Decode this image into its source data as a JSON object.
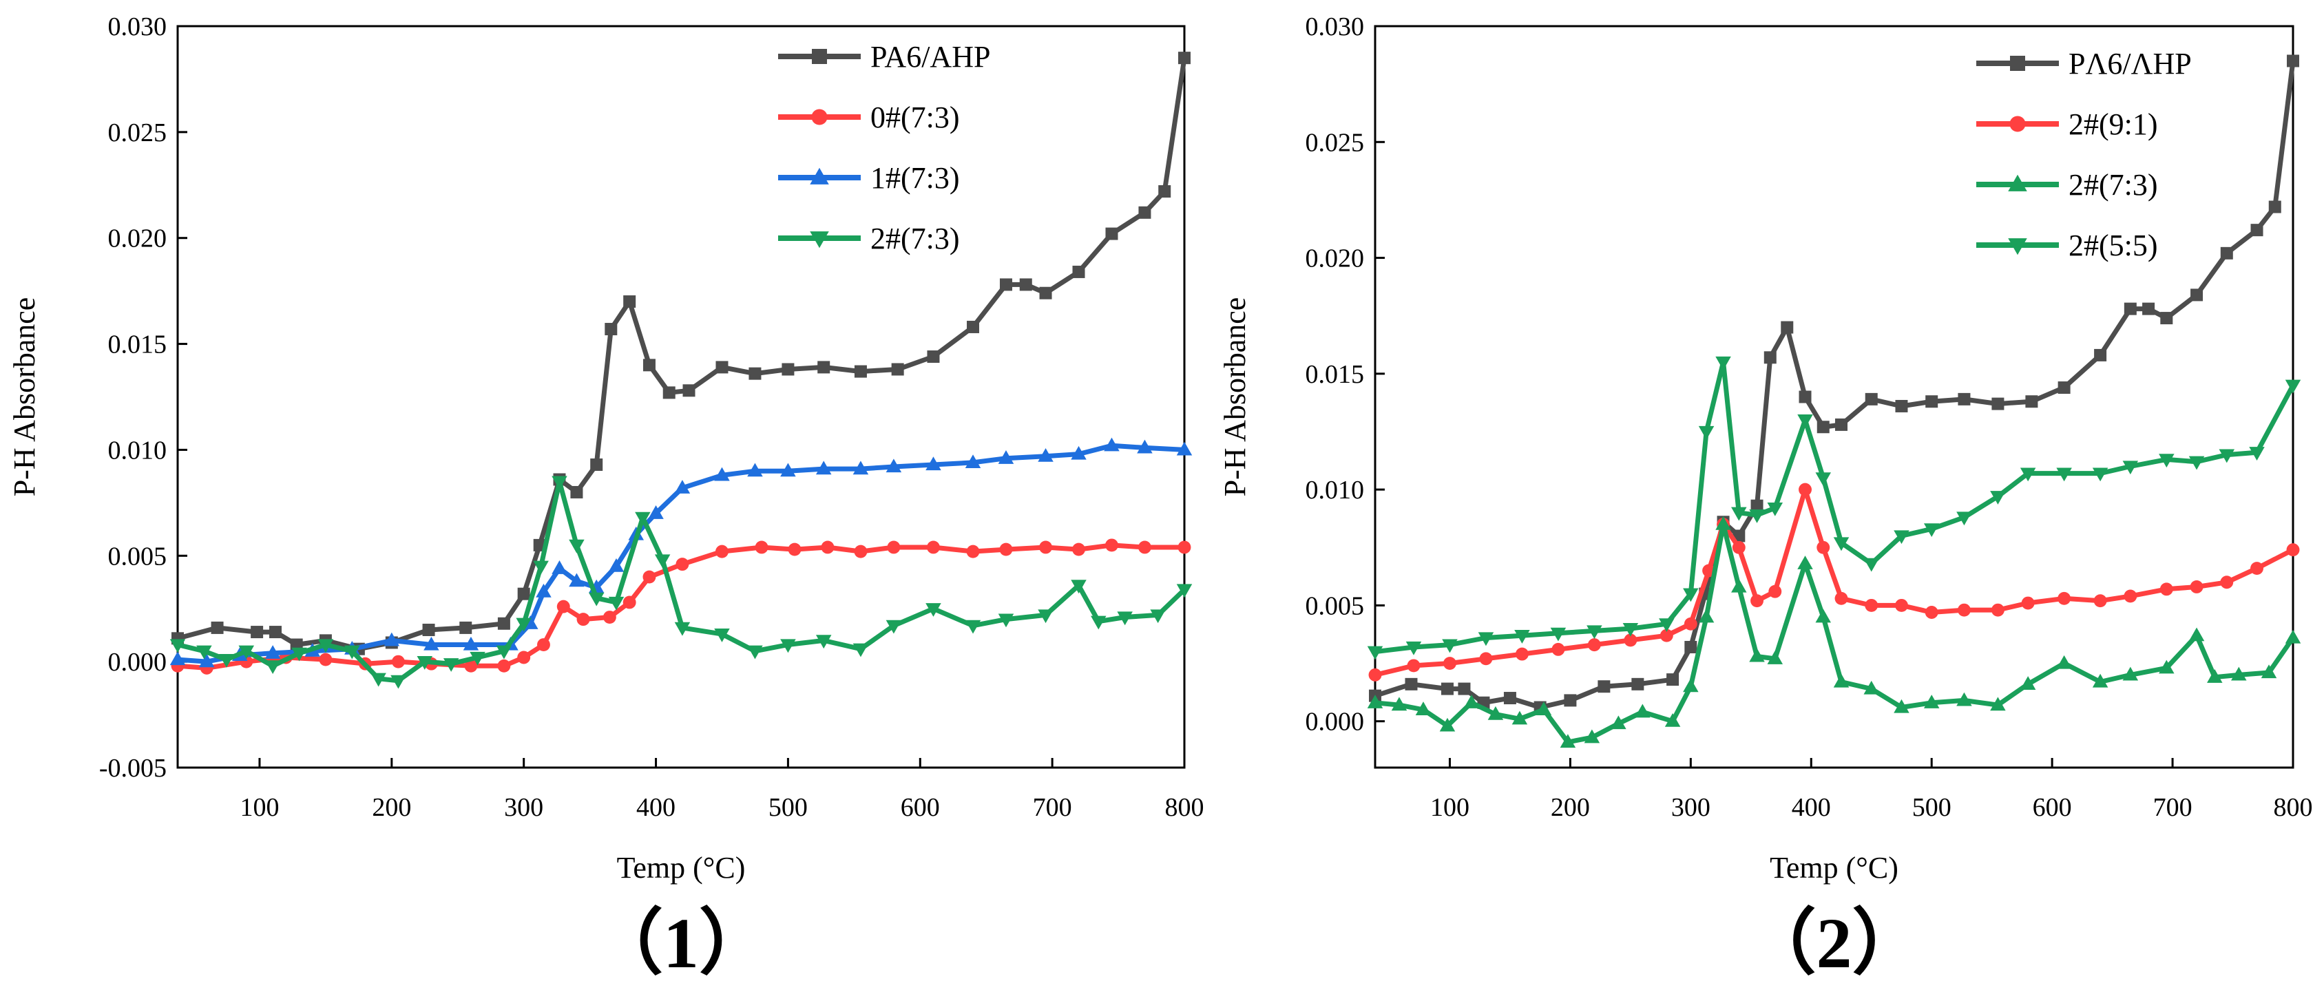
{
  "colors": {
    "PA6/AHP": "#4d4d4d",
    "PΛ6/ΛHP": "#4d4d4d",
    "0#(7:3)": "#ff4040",
    "1#(7:3)": "#1f6fde",
    "2#(7:3)": "#1aa05a",
    "2#(9:1)": "#ff4040",
    "2#(5:5)": "#1aa05a"
  },
  "chart_data": [
    {
      "type": "line",
      "panel_label": "（1）",
      "xlabel": "Temp (°C)",
      "ylabel": "P-H Absorbance",
      "xlim": [
        38,
        800
      ],
      "ylim": [
        -0.005,
        0.03
      ],
      "xticks": [
        100,
        200,
        300,
        400,
        500,
        600,
        700,
        800
      ],
      "yticks": [
        -0.005,
        0.0,
        0.005,
        0.01,
        0.015,
        0.02,
        0.025,
        0.03
      ],
      "ytick_labels": [
        "-0.005",
        "0.000",
        "0.005",
        "0.010",
        "0.015",
        "0.020",
        "0.025",
        "0.030"
      ],
      "legend_position": "top-right",
      "series": [
        {
          "name": "PA6/AHP",
          "marker": "square",
          "color_key": "PA6/AHP",
          "x": [
            38,
            68,
            98,
            112,
            128,
            150,
            175,
            200,
            228,
            256,
            285,
            300,
            312,
            327,
            340,
            355,
            366,
            380,
            395,
            410,
            425,
            450,
            475,
            500,
            527,
            555,
            583,
            610,
            640,
            665,
            680,
            695,
            720,
            745,
            770,
            785,
            800
          ],
          "y": [
            0.0011,
            0.0016,
            0.0014,
            0.0014,
            0.0008,
            0.001,
            0.0006,
            0.0009,
            0.0015,
            0.0016,
            0.0018,
            0.0032,
            0.0055,
            0.0086,
            0.008,
            0.0093,
            0.0157,
            0.017,
            0.014,
            0.0127,
            0.0128,
            0.0139,
            0.0136,
            0.0138,
            0.0139,
            0.0137,
            0.0138,
            0.0144,
            0.0158,
            0.0178,
            0.0178,
            0.0174,
            0.0184,
            0.0202,
            0.0212,
            0.0222,
            0.0285
          ]
        },
        {
          "name": "0#(7:3)",
          "marker": "circle",
          "color_key": "0#(7:3)",
          "x": [
            38,
            60,
            90,
            120,
            150,
            180,
            205,
            230,
            260,
            285,
            300,
            315,
            330,
            345,
            365,
            380,
            395,
            420,
            450,
            480,
            505,
            530,
            555,
            580,
            610,
            640,
            665,
            695,
            720,
            745,
            770,
            800
          ],
          "y": [
            -0.0002,
            -0.0003,
            0.0,
            0.0002,
            0.0001,
            -0.0001,
            0.0,
            -0.0001,
            -0.0002,
            -0.0002,
            0.0002,
            0.0008,
            0.0026,
            0.002,
            0.0021,
            0.0028,
            0.004,
            0.0046,
            0.0052,
            0.0054,
            0.0053,
            0.0054,
            0.0052,
            0.0054,
            0.0054,
            0.0052,
            0.0053,
            0.0054,
            0.0053,
            0.0055,
            0.0054,
            0.0054
          ]
        },
        {
          "name": "1#(7:3)",
          "marker": "triangle-up",
          "color_key": "1#(7:3)",
          "x": [
            38,
            60,
            85,
            110,
            140,
            170,
            200,
            230,
            260,
            290,
            305,
            315,
            327,
            340,
            355,
            370,
            385,
            400,
            420,
            450,
            475,
            500,
            527,
            555,
            580,
            610,
            640,
            665,
            695,
            720,
            745,
            770,
            800
          ],
          "y": [
            0.0001,
            0.0,
            0.0003,
            0.0004,
            0.0005,
            0.0006,
            0.001,
            0.0008,
            0.0008,
            0.0008,
            0.0018,
            0.0033,
            0.0044,
            0.0038,
            0.0035,
            0.0045,
            0.006,
            0.007,
            0.0082,
            0.0088,
            0.009,
            0.009,
            0.0091,
            0.0091,
            0.0092,
            0.0093,
            0.0094,
            0.0096,
            0.0097,
            0.0098,
            0.0102,
            0.0101,
            0.01
          ]
        },
        {
          "name": "2#(7:3)",
          "marker": "triangle-down",
          "color_key": "2#(7:3)",
          "x": [
            38,
            58,
            75,
            90,
            110,
            130,
            150,
            170,
            190,
            205,
            225,
            245,
            265,
            285,
            300,
            313,
            327,
            340,
            355,
            370,
            390,
            405,
            420,
            450,
            475,
            500,
            527,
            555,
            580,
            610,
            640,
            665,
            695,
            720,
            735,
            755,
            780,
            800
          ],
          "y": [
            0.0008,
            0.0005,
            0.0001,
            0.0005,
            -0.0002,
            0.0004,
            0.0008,
            0.0005,
            -0.0008,
            -0.0009,
            0.0,
            -0.0001,
            0.0002,
            0.0005,
            0.0018,
            0.0045,
            0.0085,
            0.0055,
            0.003,
            0.0028,
            0.0068,
            0.0048,
            0.0016,
            0.0013,
            0.0005,
            0.0008,
            0.001,
            0.0006,
            0.0017,
            0.0025,
            0.0017,
            0.002,
            0.0022,
            0.0036,
            0.0019,
            0.0021,
            0.0022,
            0.0034
          ]
        }
      ]
    },
    {
      "type": "line",
      "panel_label": "（2）",
      "xlabel": "Temp (°C)",
      "ylabel": "P-H Absorbance",
      "xlim": [
        38,
        800
      ],
      "ylim": [
        -0.002,
        0.03
      ],
      "xticks": [
        100,
        200,
        300,
        400,
        500,
        600,
        700,
        800
      ],
      "yticks": [
        0.0,
        0.005,
        0.01,
        0.015,
        0.02,
        0.025,
        0.03
      ],
      "ytick_labels": [
        "0.000",
        "0.005",
        "0.010",
        "0.015",
        "0.020",
        "0.025",
        "0.030"
      ],
      "legend_position": "top-right",
      "series": [
        {
          "name": "PΛ6/ΛHP",
          "marker": "square",
          "color_key": "PΛ6/ΛHP",
          "x": [
            38,
            68,
            98,
            112,
            128,
            150,
            175,
            200,
            228,
            256,
            285,
            300,
            312,
            327,
            340,
            355,
            366,
            380,
            395,
            410,
            425,
            450,
            475,
            500,
            527,
            555,
            583,
            610,
            640,
            665,
            680,
            695,
            720,
            745,
            770,
            785,
            800
          ],
          "y": [
            0.0011,
            0.0016,
            0.0014,
            0.0014,
            0.0008,
            0.001,
            0.0006,
            0.0009,
            0.0015,
            0.0016,
            0.0018,
            0.0032,
            0.0055,
            0.0086,
            0.008,
            0.0093,
            0.0157,
            0.017,
            0.014,
            0.0127,
            0.0128,
            0.0139,
            0.0136,
            0.0138,
            0.0139,
            0.0137,
            0.0138,
            0.0144,
            0.0158,
            0.0178,
            0.0178,
            0.0174,
            0.0184,
            0.0202,
            0.0212,
            0.0222,
            0.0285
          ]
        },
        {
          "name": "2#(9:1)",
          "marker": "circle",
          "color_key": "2#(9:1)",
          "x": [
            38,
            70,
            100,
            130,
            160,
            190,
            220,
            250,
            280,
            300,
            315,
            327,
            340,
            355,
            370,
            395,
            410,
            425,
            450,
            475,
            500,
            527,
            555,
            580,
            610,
            640,
            665,
            695,
            720,
            745,
            770,
            800
          ],
          "y": [
            0.002,
            0.0024,
            0.0025,
            0.0027,
            0.0029,
            0.0031,
            0.0033,
            0.0035,
            0.0037,
            0.0042,
            0.0065,
            0.0085,
            0.0075,
            0.0052,
            0.0056,
            0.01,
            0.0075,
            0.0053,
            0.005,
            0.005,
            0.0047,
            0.0048,
            0.0048,
            0.0051,
            0.0053,
            0.0052,
            0.0054,
            0.0057,
            0.0058,
            0.006,
            0.0066,
            0.0074
          ]
        },
        {
          "name": "2#(7:3)",
          "marker": "triangle-up",
          "color_key": "2#(7:3)",
          "x": [
            38,
            58,
            78,
            98,
            118,
            138,
            158,
            178,
            198,
            218,
            240,
            260,
            285,
            300,
            313,
            327,
            340,
            355,
            370,
            395,
            410,
            425,
            450,
            475,
            500,
            527,
            555,
            580,
            610,
            640,
            665,
            695,
            720,
            735,
            755,
            780,
            800
          ],
          "y": [
            0.0008,
            0.0007,
            0.0005,
            -0.0002,
            0.0008,
            0.0003,
            0.0001,
            0.0005,
            -0.0009,
            -0.0007,
            -0.0001,
            0.0004,
            0.0,
            0.0015,
            0.0045,
            0.0085,
            0.0058,
            0.0028,
            0.0027,
            0.0068,
            0.0045,
            0.0017,
            0.0014,
            0.0006,
            0.0008,
            0.0009,
            0.0007,
            0.0016,
            0.0025,
            0.0017,
            0.002,
            0.0023,
            0.0037,
            0.0019,
            0.002,
            0.0021,
            0.0036
          ]
        },
        {
          "name": "2#(5:5)",
          "marker": "triangle-down",
          "color_key": "2#(5:5)",
          "x": [
            38,
            70,
            100,
            130,
            160,
            190,
            220,
            250,
            280,
            300,
            313,
            327,
            340,
            355,
            370,
            395,
            410,
            425,
            450,
            475,
            500,
            527,
            555,
            580,
            610,
            640,
            665,
            695,
            720,
            745,
            770,
            800
          ],
          "y": [
            0.003,
            0.0032,
            0.0033,
            0.0036,
            0.0037,
            0.0038,
            0.0039,
            0.004,
            0.0042,
            0.0055,
            0.0125,
            0.0155,
            0.009,
            0.0089,
            0.0092,
            0.013,
            0.0105,
            0.0077,
            0.0068,
            0.008,
            0.0083,
            0.0088,
            0.0097,
            0.0107,
            0.0107,
            0.0107,
            0.011,
            0.0113,
            0.0112,
            0.0115,
            0.0116,
            0.0145
          ]
        }
      ]
    }
  ]
}
